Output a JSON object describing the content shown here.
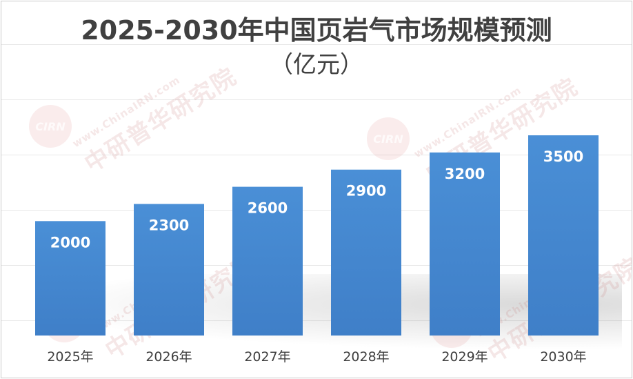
{
  "chart_data": {
    "type": "bar",
    "title": "2025-2030年中国页岩气市场规模预测",
    "subtitle": "（亿元）",
    "categories": [
      "2025年",
      "2026年",
      "2027年",
      "2028年",
      "2029年",
      "2030年"
    ],
    "values": [
      2000,
      2300,
      2600,
      2900,
      3200,
      3500
    ],
    "ylim": [
      0,
      4000
    ],
    "grid": true,
    "bar_color": "#4a8fd6",
    "bar_color_dark": "#3f7fc8",
    "label_color": "#ffffff",
    "tick_color": "#404040"
  },
  "watermark": {
    "url": "www.ChinaIRN.com",
    "brand": "中研普华研究院",
    "logo": "CIRN"
  }
}
